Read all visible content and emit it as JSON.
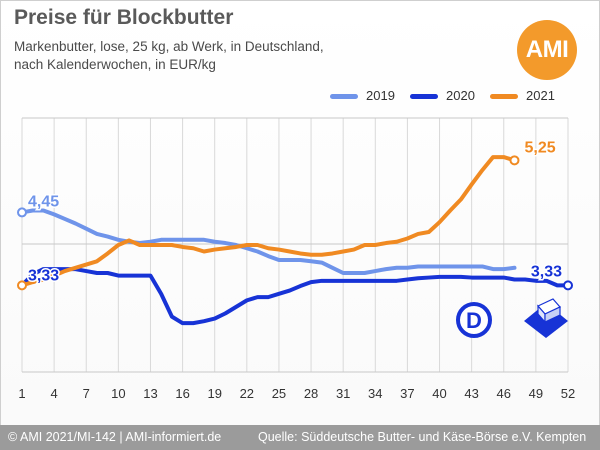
{
  "title": "Preise für Blockbutter",
  "subtitle_line1": "Markenbutter, lose, 25 kg, ab Werk, in Deutschland,",
  "subtitle_line2": "nach Kalenderwochen, in EUR/kg",
  "logo_text": "AMI",
  "footer_left": "© AMI 2021/MI-142 | AMI-informiert.de",
  "footer_right": "Quelle: Süddeutsche Butter- und Käse-Börse e.V. Kempten",
  "colors": {
    "2019": "#6f94ea",
    "2020": "#1733d6",
    "2021": "#f08a22"
  },
  "chart_data": {
    "type": "line",
    "x_ticks": [
      1,
      4,
      7,
      10,
      13,
      16,
      19,
      22,
      25,
      28,
      31,
      34,
      37,
      40,
      43,
      46,
      49,
      52
    ],
    "xlim": [
      1,
      52
    ],
    "ylim": [
      2.0,
      5.9
    ],
    "grid": true,
    "legend_position": "top-right",
    "annotations": [
      {
        "text": "4,45",
        "series": "2019"
      },
      {
        "text": "3,33",
        "series": "2020",
        "position": "start"
      },
      {
        "text": "3,33",
        "series": "2020",
        "position": "end"
      },
      {
        "text": "5,25",
        "series": "2021"
      }
    ],
    "series": [
      {
        "name": "2019",
        "x": [
          1,
          2,
          3,
          4,
          5,
          6,
          7,
          8,
          9,
          10,
          11,
          12,
          13,
          14,
          15,
          16,
          17,
          18,
          19,
          20,
          21,
          22,
          23,
          24,
          25,
          26,
          27,
          28,
          29,
          30,
          31,
          32,
          33,
          34,
          35,
          36,
          37,
          38,
          39,
          40,
          41,
          42,
          43,
          44,
          45,
          46,
          47
        ],
        "y": [
          4.45,
          4.48,
          4.48,
          4.42,
          4.35,
          4.28,
          4.2,
          4.12,
          4.08,
          4.03,
          4.0,
          3.98,
          4.0,
          4.03,
          4.03,
          4.03,
          4.03,
          4.03,
          4.0,
          3.98,
          3.95,
          3.9,
          3.85,
          3.78,
          3.72,
          3.72,
          3.72,
          3.7,
          3.68,
          3.6,
          3.52,
          3.52,
          3.52,
          3.55,
          3.58,
          3.6,
          3.6,
          3.62,
          3.62,
          3.62,
          3.62,
          3.62,
          3.62,
          3.62,
          3.58,
          3.58,
          3.6
        ]
      },
      {
        "name": "2020",
        "x": [
          1,
          2,
          3,
          4,
          5,
          6,
          7,
          8,
          9,
          10,
          11,
          12,
          13,
          14,
          15,
          16,
          17,
          18,
          19,
          20,
          21,
          22,
          23,
          24,
          25,
          26,
          27,
          28,
          29,
          30,
          31,
          32,
          33,
          34,
          35,
          36,
          37,
          38,
          39,
          40,
          41,
          42,
          43,
          44,
          45,
          46,
          47,
          48,
          49,
          50,
          51,
          52
        ],
        "y": [
          3.33,
          3.5,
          3.58,
          3.58,
          3.58,
          3.58,
          3.55,
          3.52,
          3.52,
          3.48,
          3.48,
          3.48,
          3.48,
          3.2,
          2.85,
          2.75,
          2.75,
          2.78,
          2.82,
          2.9,
          3.0,
          3.1,
          3.15,
          3.15,
          3.2,
          3.25,
          3.32,
          3.38,
          3.4,
          3.4,
          3.4,
          3.4,
          3.4,
          3.4,
          3.4,
          3.4,
          3.42,
          3.44,
          3.45,
          3.46,
          3.46,
          3.46,
          3.45,
          3.45,
          3.45,
          3.45,
          3.42,
          3.42,
          3.4,
          3.4,
          3.33,
          3.33
        ]
      },
      {
        "name": "2021",
        "x": [
          1,
          2,
          3,
          4,
          5,
          6,
          7,
          8,
          9,
          10,
          11,
          12,
          13,
          14,
          15,
          16,
          17,
          18,
          19,
          20,
          21,
          22,
          23,
          24,
          25,
          26,
          27,
          28,
          29,
          30,
          31,
          32,
          33,
          34,
          35,
          36,
          37,
          38,
          39,
          40,
          41,
          42,
          43,
          44,
          45,
          46,
          47
        ],
        "y": [
          3.33,
          3.38,
          3.42,
          3.48,
          3.55,
          3.6,
          3.65,
          3.7,
          3.82,
          3.95,
          4.02,
          3.95,
          3.95,
          3.95,
          3.95,
          3.92,
          3.9,
          3.85,
          3.88,
          3.9,
          3.92,
          3.95,
          3.95,
          3.9,
          3.88,
          3.85,
          3.82,
          3.8,
          3.8,
          3.82,
          3.85,
          3.88,
          3.95,
          3.95,
          3.98,
          4.0,
          4.05,
          4.12,
          4.15,
          4.3,
          4.48,
          4.65,
          4.88,
          5.1,
          5.3,
          5.3,
          5.25
        ]
      }
    ]
  }
}
